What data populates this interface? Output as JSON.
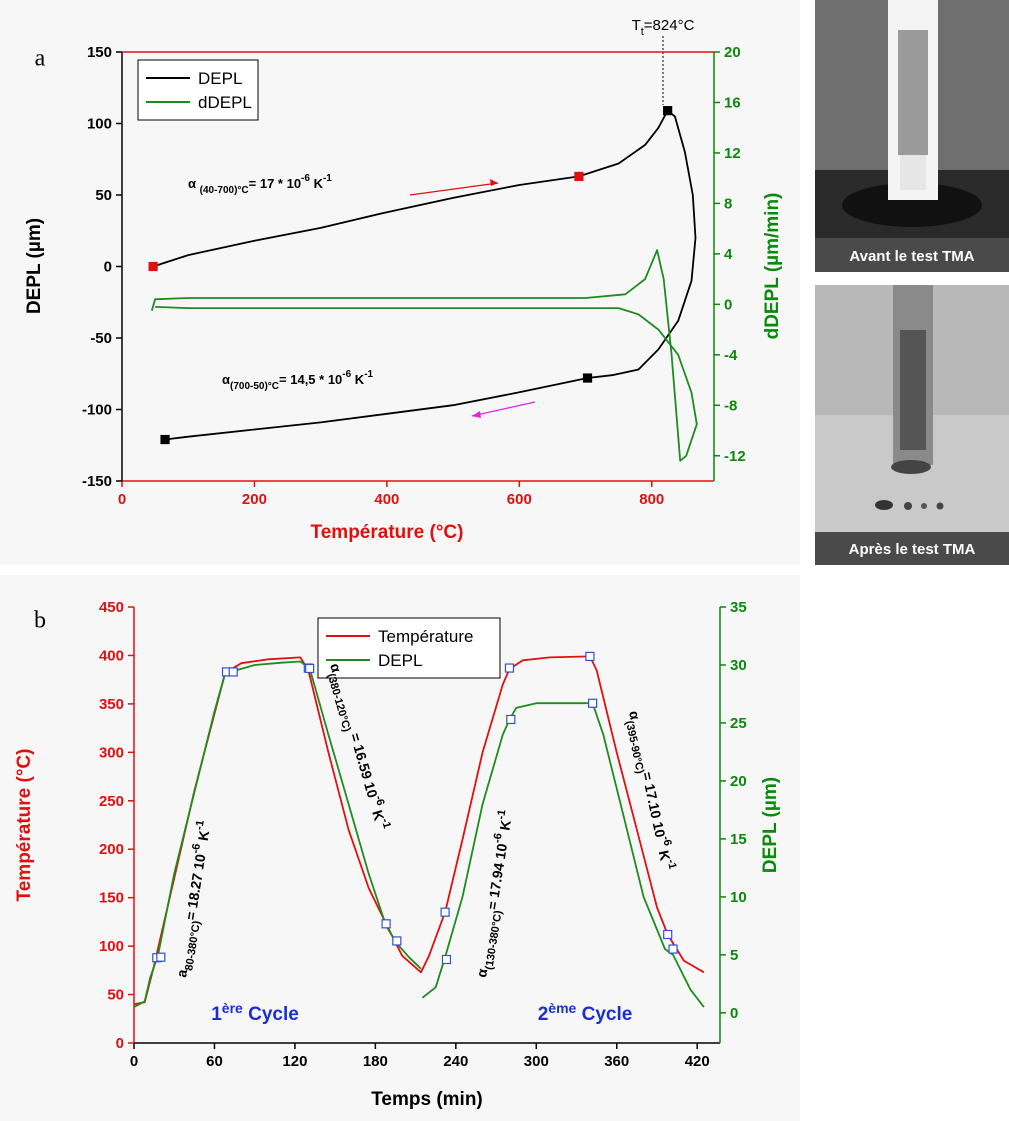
{
  "chart_data": [
    {
      "type": "line",
      "panel_label": "a",
      "x_label": "Température (°C)",
      "y_label": "DEPL (µm)",
      "y2_label": "dDEPL (µm/min)",
      "xlim": [
        0,
        894
      ],
      "xticks": [
        0,
        200,
        400,
        600,
        800
      ],
      "ylim": [
        -150,
        150
      ],
      "yticks": [
        -150,
        -100,
        -50,
        0,
        50,
        100,
        150
      ],
      "y2lim": [
        -14,
        20
      ],
      "y2ticks": [
        -12,
        -8,
        -4,
        0,
        4,
        8,
        12,
        16,
        20
      ],
      "axis_colors": {
        "x": "#e01010",
        "y": "#000000",
        "y2": "#0a8a0a"
      },
      "frame_top_color": "#e01010",
      "legend": "upper left",
      "series": [
        {
          "name": "DEPL",
          "color": "#000000",
          "x": [
            47,
            100,
            200,
            300,
            400,
            500,
            600,
            690,
            750,
            790,
            810,
            824,
            835,
            850,
            862,
            866,
            860,
            840,
            810,
            780,
            740,
            703,
            600,
            500,
            400,
            300,
            200,
            100,
            65
          ],
          "values": [
            0,
            8,
            18,
            27,
            38,
            48,
            57,
            63,
            72,
            85,
            97,
            109,
            105,
            80,
            50,
            20,
            -10,
            -38,
            -58,
            -72,
            -76,
            -78,
            -88,
            -97,
            -103,
            -109,
            -114,
            -119,
            -121
          ]
        },
        {
          "name": "dDEPL",
          "color": "#1e8c1e",
          "axis": "y2",
          "x": [
            45,
            50,
            100,
            200,
            300,
            400,
            500,
            600,
            700,
            760,
            790,
            808,
            818,
            830,
            843,
            852,
            868,
            860,
            840,
            810,
            780,
            750,
            600,
            400,
            200,
            100,
            50
          ],
          "values": [
            -0.5,
            0.4,
            0.5,
            0.5,
            0.5,
            0.5,
            0.5,
            0.5,
            0.5,
            0.8,
            2,
            4.3,
            2,
            -4,
            -12.4,
            -12,
            -9.5,
            -7,
            -4,
            -2,
            -0.8,
            -0.3,
            -0.3,
            -0.3,
            -0.3,
            -0.3,
            -0.2
          ]
        }
      ],
      "markers": [
        {
          "x": 47,
          "y": 0,
          "fill": "#e01010",
          "stroke": "#e01010"
        },
        {
          "x": 690,
          "y": 63,
          "fill": "#e01010",
          "stroke": "#e01010"
        },
        {
          "x": 824,
          "y": 109,
          "fill": "#000000",
          "stroke": "#000000"
        },
        {
          "x": 703,
          "y": -78,
          "fill": "#000000",
          "stroke": "#000000"
        },
        {
          "x": 65,
          "y": -121,
          "fill": "#000000",
          "stroke": "#000000"
        }
      ],
      "annotations": [
        {
          "color": "#000000",
          "parts": [
            {
              "text": "T"
            },
            {
              "text": "t",
              "pos": "sub"
            },
            {
              "text": "=824°C"
            }
          ]
        },
        {
          "color": "#000000",
          "parts": [
            {
              "text": "α "
            },
            {
              "text": "(40-700)°C",
              "pos": "sub"
            },
            {
              "text": "= 17 * 10"
            },
            {
              "text": "-6",
              "pos": "sup"
            },
            {
              "text": " K"
            },
            {
              "text": "-1",
              "pos": "sup"
            }
          ]
        },
        {
          "color": "#000000",
          "parts": [
            {
              "text": "α"
            },
            {
              "text": "(700-50)°C",
              "pos": "sub"
            },
            {
              "text": "= 14,5 * 10"
            },
            {
              "text": "-6",
              "pos": "sup"
            },
            {
              "text": " K"
            },
            {
              "text": "-1",
              "pos": "sup"
            }
          ]
        }
      ]
    },
    {
      "type": "line",
      "panel_label": "b",
      "x_label": "Temps (min)",
      "y_label": "Température (°C)",
      "y2_label": "DEPL (µm)",
      "xlim": [
        0,
        437
      ],
      "xticks": [
        0,
        60,
        120,
        180,
        240,
        300,
        360,
        420
      ],
      "ylim": [
        0,
        450
      ],
      "yticks": [
        0,
        50,
        100,
        150,
        200,
        250,
        300,
        350,
        400,
        450
      ],
      "y2lim": [
        -2.6,
        35
      ],
      "y2ticks": [
        0,
        5,
        10,
        15,
        20,
        25,
        30,
        35
      ],
      "axis_colors": {
        "x": "#000000",
        "y": "#e01010",
        "y2": "#0a8a0a"
      },
      "legend": "upper center",
      "series": [
        {
          "name": "Température",
          "color": "#e01010",
          "x": [
            0,
            8,
            15,
            30,
            45,
            60,
            68,
            80,
            100,
            124,
            130,
            145,
            160,
            175,
            188,
            200,
            214,
            220,
            232,
            245,
            260,
            275,
            280,
            290,
            310,
            340,
            345,
            360,
            375,
            390,
            398,
            410,
            425
          ],
          "values": [
            40,
            42,
            80,
            170,
            260,
            340,
            382,
            392,
            396,
            398,
            385,
            300,
            220,
            160,
            123,
            90,
            73,
            90,
            135,
            210,
            300,
            370,
            386,
            395,
            398,
            399,
            385,
            300,
            220,
            140,
            112,
            85,
            73
          ]
        },
        {
          "name": "DEPL",
          "color": "#1e8c1e",
          "axis": "y2",
          "x": [
            0,
            8,
            12,
            18,
            30,
            45,
            60,
            68,
            75,
            90,
            110,
            124,
            131,
            145,
            160,
            175,
            188,
            196,
            205,
            214,
            214.5,
            215,
            225,
            232,
            245,
            260,
            275,
            280,
            285,
            300,
            330,
            342,
            350,
            365,
            380,
            396,
            402,
            415,
            425
          ],
          "values": [
            0.5,
            1,
            3,
            5,
            12,
            19,
            26,
            29.3,
            29.5,
            30,
            30.2,
            30.3,
            29.7,
            24,
            18,
            12,
            7.5,
            6,
            4.8,
            3.8,
            null,
            1.3,
            2.2,
            4.8,
            10,
            18,
            24,
            25.3,
            26.3,
            26.7,
            26.7,
            26.7,
            24,
            17,
            10,
            5.5,
            5,
            2,
            0.5
          ]
        }
      ],
      "markers": [
        {
          "x": 17,
          "y": 88,
          "fill": "#ffffff",
          "stroke": "#3050d0"
        },
        {
          "x": 69,
          "y": 383,
          "fill": "#ffffff",
          "stroke": "#3050d0"
        },
        {
          "x": 130,
          "y": 387,
          "fill": "#ffffff",
          "stroke": "#3050d0"
        },
        {
          "x": 188,
          "y": 123,
          "fill": "#ffffff",
          "stroke": "#3050d0"
        },
        {
          "x": 232,
          "y": 135,
          "fill": "#ffffff",
          "stroke": "#3050d0"
        },
        {
          "x": 280,
          "y": 387,
          "fill": "#ffffff",
          "stroke": "#3050d0"
        },
        {
          "x": 340,
          "y": 399,
          "fill": "#ffffff",
          "stroke": "#3050d0"
        },
        {
          "x": 398,
          "y": 112,
          "fill": "#ffffff",
          "stroke": "#3050d0"
        },
        {
          "x": 20,
          "y": 4.8,
          "axis": "y2",
          "fill": "#ffffff",
          "stroke": "#3050d0"
        },
        {
          "x": 74,
          "y": 29.4,
          "axis": "y2",
          "fill": "#ffffff",
          "stroke": "#3050d0"
        },
        {
          "x": 131,
          "y": 29.7,
          "axis": "y2",
          "fill": "#ffffff",
          "stroke": "#3050d0"
        },
        {
          "x": 196,
          "y": 6.2,
          "axis": "y2",
          "fill": "#ffffff",
          "stroke": "#3050d0"
        },
        {
          "x": 233,
          "y": 4.6,
          "axis": "y2",
          "fill": "#ffffff",
          "stroke": "#3050d0"
        },
        {
          "x": 281,
          "y": 25.3,
          "axis": "y2",
          "fill": "#ffffff",
          "stroke": "#3050d0"
        },
        {
          "x": 342,
          "y": 26.7,
          "axis": "y2",
          "fill": "#ffffff",
          "stroke": "#3050d0"
        },
        {
          "x": 402,
          "y": 5.5,
          "axis": "y2",
          "fill": "#ffffff",
          "stroke": "#3050d0"
        }
      ],
      "annotations": [
        {
          "color": "#000000",
          "parts": [
            {
              "text": "a"
            },
            {
              "text": "80-380°C)",
              "pos": "sub"
            },
            {
              "text": "= 18.27 10"
            },
            {
              "text": "-6",
              "pos": "sup"
            },
            {
              "text": " K"
            },
            {
              "text": "-1",
              "pos": "sup"
            }
          ]
        },
        {
          "color": "#000000",
          "parts": [
            {
              "text": "α"
            },
            {
              "text": "(380-120°C)",
              "pos": "sub"
            },
            {
              "text": " = 16.59 10"
            },
            {
              "text": "-6",
              "pos": "sup"
            },
            {
              "text": " K"
            },
            {
              "text": "-1",
              "pos": "sup"
            }
          ]
        },
        {
          "color": "#000000",
          "parts": [
            {
              "text": "α"
            },
            {
              "text": "(130-380°C)",
              "pos": "sub"
            },
            {
              "text": "= 17.94 10"
            },
            {
              "text": "-6",
              "pos": "sup"
            },
            {
              "text": " K"
            },
            {
              "text": "-1",
              "pos": "sup"
            }
          ]
        },
        {
          "color": "#000000",
          "parts": [
            {
              "text": "α"
            },
            {
              "text": "(395-90°C)",
              "pos": "sub"
            },
            {
              "text": "= 17.10 10"
            },
            {
              "text": "-6",
              "pos": "sup"
            },
            {
              "text": " K"
            },
            {
              "text": "-1",
              "pos": "sup"
            }
          ]
        },
        {
          "color": "#1a2fd0",
          "parts": [
            {
              "text": "1"
            },
            {
              "text": "ère",
              "pos": "sup"
            },
            {
              "text": " Cycle"
            }
          ]
        },
        {
          "color": "#1a2fd0",
          "parts": [
            {
              "text": "2"
            },
            {
              "text": "ème",
              "pos": "sup"
            },
            {
              "text": " Cycle"
            }
          ]
        }
      ]
    }
  ],
  "photos": [
    {
      "caption": "Avant le test TMA"
    },
    {
      "caption": "Après le test TMA"
    }
  ]
}
